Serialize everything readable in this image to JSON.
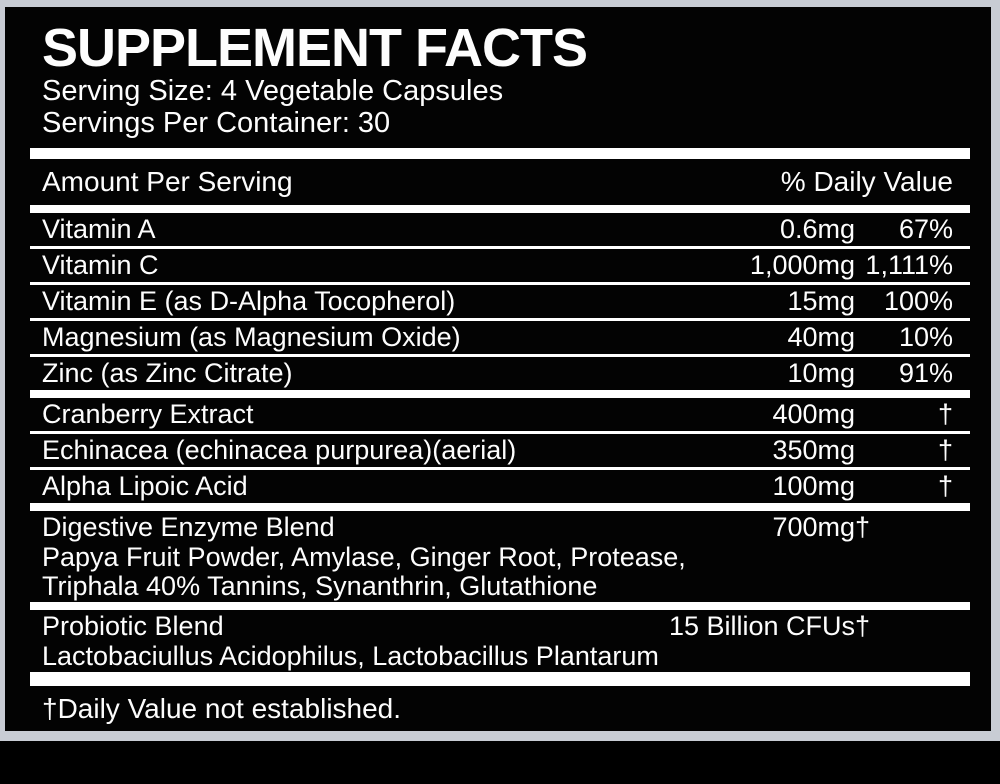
{
  "colors": {
    "page_black": "#000000",
    "frame_gray": "#c8ccd4",
    "label_black": "#030303",
    "text_white": "#fdfdfd"
  },
  "header": {
    "title": "SUPPLEMENT FACTS",
    "serving_size": "Serving Size: 4 Vegetable Capsules",
    "servings_per_container": "Servings Per Container: 30"
  },
  "table": {
    "amount_header": "Amount Per Serving",
    "daily_value_header": "% Daily Value",
    "rows": [
      {
        "name": "Vitamin A",
        "amount": "0.6mg",
        "dv": "67%"
      },
      {
        "name": "Vitamin C",
        "amount": "1,000mg",
        "dv": "1,111%"
      },
      {
        "name": "Vitamin E (as D-Alpha Tocopherol)",
        "amount": "15mg",
        "dv": "100%"
      },
      {
        "name": "Magnesium (as Magnesium Oxide)",
        "amount": "40mg",
        "dv": "10%"
      },
      {
        "name": "Zinc (as Zinc Citrate)",
        "amount": "10mg",
        "dv": "91%"
      },
      {
        "name": "Cranberry Extract",
        "amount": "400mg",
        "dv": "†"
      },
      {
        "name": "Echinacea (echinacea purpurea)(aerial)",
        "amount": "350mg",
        "dv": "†"
      },
      {
        "name": "Alpha Lipoic Acid",
        "amount": "100mg",
        "dv": "†"
      },
      {
        "name": "Digestive Enzyme Blend",
        "amount": "700mg",
        "dv": "†",
        "sub1": "Papya Fruit Powder, Amylase, Ginger Root, Protease,",
        "sub2": "Triphala 40% Tannins, Synanthrin, Glutathione"
      },
      {
        "name": "Probiotic Blend",
        "amount": "15 Billion CFUs",
        "dv": "†",
        "sub1": "Lactobaciullus Acidophilus, Lactobacillus Plantarum"
      }
    ],
    "footnote": "†Daily Value not established."
  }
}
